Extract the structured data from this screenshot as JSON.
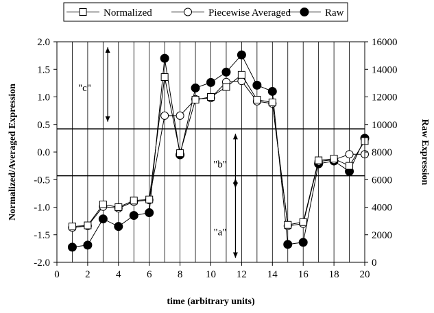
{
  "chart_data": {
    "type": "line",
    "xlabel": "time (arbitrary units)",
    "ylabel_left": "Normalized/Averaged Expression",
    "ylabel_right": "Raw Expression",
    "xlim": [
      0,
      20
    ],
    "xticks": [
      0,
      2,
      4,
      6,
      8,
      10,
      12,
      14,
      16,
      18,
      20
    ],
    "ylim_left": [
      -2.0,
      2.0
    ],
    "yticks_left": [
      "-2.0",
      "-1.5",
      "-1.0",
      "-0.5",
      "0.0",
      "0.5",
      "1.0",
      "1.5",
      "2.0"
    ],
    "ylim_right": [
      0,
      16000
    ],
    "yticks_right": [
      "0",
      "2000",
      "4000",
      "6000",
      "8000",
      "10000",
      "12000",
      "14000",
      "16000"
    ],
    "vertical_grid": true,
    "legend_position": "top",
    "x": [
      1,
      2,
      3,
      4,
      5,
      6,
      7,
      8,
      9,
      10,
      11,
      12,
      13,
      14,
      15,
      16,
      17,
      18,
      19,
      20
    ],
    "series": [
      {
        "name": "Normalized",
        "axis": "left",
        "marker": "open-square",
        "values": [
          -1.35,
          -1.33,
          -0.95,
          -1.0,
          -0.88,
          -0.86,
          1.36,
          -0.02,
          0.95,
          1.0,
          1.18,
          1.4,
          0.95,
          0.9,
          -1.32,
          -1.27,
          -0.15,
          -0.12,
          -0.25,
          0.2
        ]
      },
      {
        "name": "Piecewise Averaged",
        "axis": "left",
        "marker": "open-circle",
        "values": [
          -1.37,
          -1.34,
          -0.99,
          -1.02,
          -0.9,
          -0.87,
          0.66,
          0.66,
          0.96,
          0.98,
          1.27,
          1.29,
          0.92,
          0.88,
          -1.34,
          -1.3,
          -0.17,
          -0.14,
          -0.04,
          -0.04
        ]
      },
      {
        "name": "Raw",
        "axis": "right",
        "marker": "filled-circle",
        "values": [
          1100,
          1250,
          3150,
          2600,
          3400,
          3600,
          14800,
          7800,
          12650,
          13050,
          13800,
          15050,
          12850,
          12400,
          1300,
          1450,
          7150,
          7350,
          6600,
          9000
        ]
      }
    ],
    "horizontal_lines_left": [
      0.42,
      -0.43
    ],
    "annotations": [
      {
        "text": "\"c\"",
        "x": 1.8,
        "y": 1.17,
        "arrow_x": 3.3,
        "arrow_from": 1.9,
        "arrow_to": 0.55
      },
      {
        "text": "\"b\"",
        "x": 10.6,
        "y": -0.22,
        "arrow_x": 11.6,
        "arrow_from": 0.33,
        "arrow_to": -0.65
      },
      {
        "text": "\"a\"",
        "x": 10.6,
        "y": -1.45,
        "arrow_x": 11.6,
        "arrow_from": -0.48,
        "arrow_to": -1.92
      }
    ]
  }
}
